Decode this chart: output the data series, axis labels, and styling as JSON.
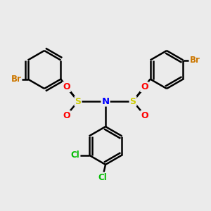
{
  "bg_color": "#ebebeb",
  "bond_color": "#000000",
  "bond_width": 1.8,
  "atom_colors": {
    "Br": "#cc7700",
    "S": "#cccc00",
    "O": "#ff0000",
    "N": "#0000ff",
    "Cl": "#00bb00",
    "C": "#000000"
  },
  "atom_fontsizes": {
    "Br": 8.5,
    "S": 9,
    "O": 9,
    "N": 9.5,
    "Cl": 8.5,
    "C": 7
  },
  "figsize": [
    3.0,
    3.0
  ],
  "dpi": 100
}
